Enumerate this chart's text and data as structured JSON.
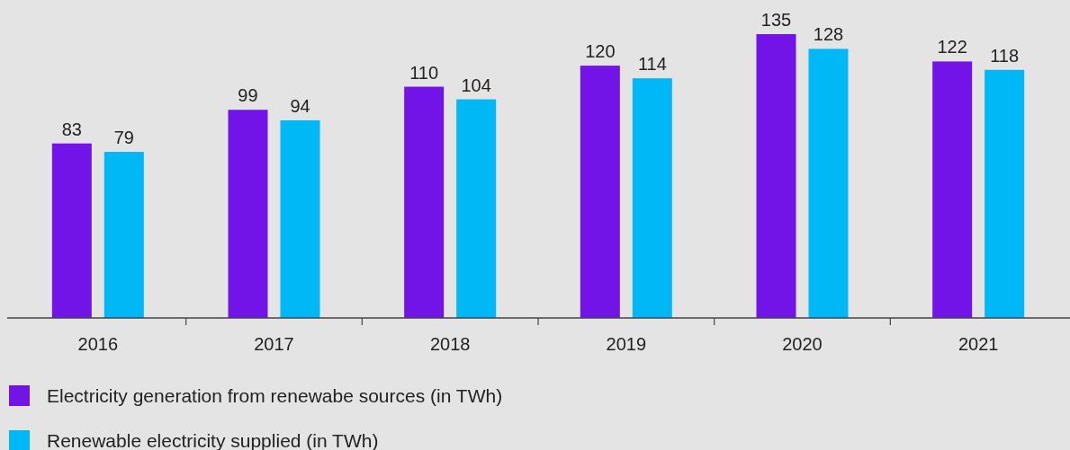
{
  "chart_data": {
    "type": "bar",
    "categories": [
      "2016",
      "2017",
      "2018",
      "2019",
      "2020",
      "2021"
    ],
    "series": [
      {
        "name": "Electricity generation from renewabe sources (in TWh)",
        "color": "#7214e8",
        "values": [
          83,
          99,
          110,
          120,
          135,
          122
        ]
      },
      {
        "name": "Renewable electricity supplied (in TWh)",
        "color": "#00b8f5",
        "values": [
          79,
          94,
          104,
          114,
          128,
          118
        ]
      }
    ],
    "data_labels": true,
    "legend": "bottom"
  }
}
